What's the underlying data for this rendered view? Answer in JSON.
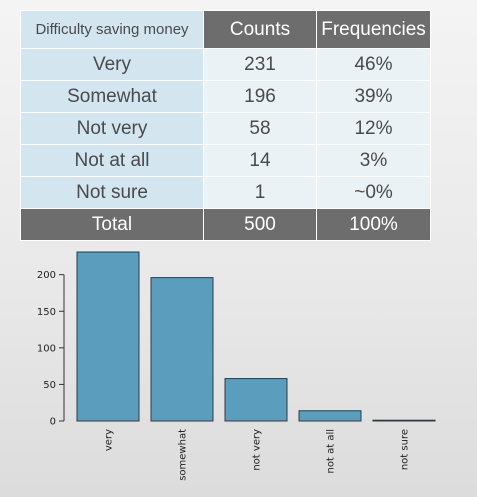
{
  "table": {
    "headers": [
      "Difficulty saving money",
      "Counts",
      "Frequencies"
    ],
    "rows": [
      {
        "label": "Very",
        "count": "231",
        "freq": "46%"
      },
      {
        "label": "Somewhat",
        "count": "196",
        "freq": "39%"
      },
      {
        "label": "Not very",
        "count": "58",
        "freq": "12%"
      },
      {
        "label": "Not at all",
        "count": "14",
        "freq": "3%"
      },
      {
        "label": "Not sure",
        "count": "1",
        "freq": "~0%"
      }
    ],
    "total": {
      "label": "Total",
      "count": "500",
      "freq": "100%"
    },
    "colors": {
      "label_cell": "#d3e6ef",
      "value_cell": "#eaf2f6",
      "dark_cell": "#6c6d6c"
    }
  },
  "chart_data": {
    "type": "bar",
    "categories": [
      "very",
      "somewhat",
      "not very",
      "not at all",
      "not sure"
    ],
    "values": [
      231,
      196,
      58,
      14,
      1
    ],
    "ylim": [
      0,
      231
    ],
    "yticks": [
      0,
      50,
      100,
      150,
      200
    ],
    "bar_color": "#5a9dbd",
    "grid": false,
    "title": "",
    "xlabel": "",
    "ylabel": ""
  }
}
